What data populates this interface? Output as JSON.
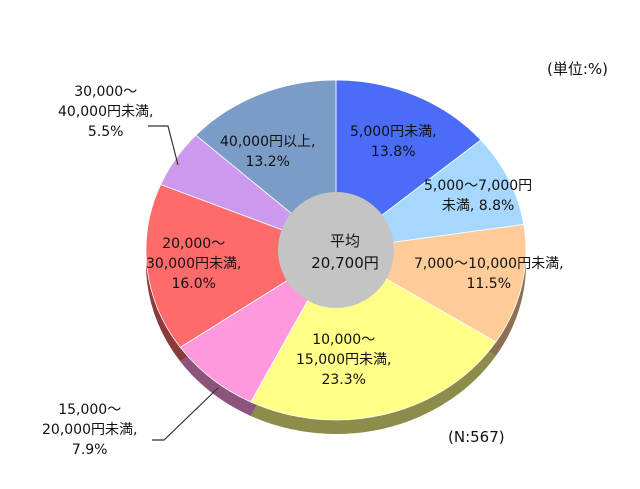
{
  "chart_data": {
    "type": "pie",
    "title": "",
    "unit_note": "(単位:%)",
    "n_note": "(N:567)",
    "center_label": [
      "平均",
      "20,700円"
    ],
    "slices": [
      {
        "label": [
          "5,000円未満,",
          "13.8%"
        ],
        "value": 13.8,
        "color": "#4a6cf7"
      },
      {
        "label": [
          "5,000〜7,000円",
          "未満, 8.8%"
        ],
        "value": 8.8,
        "color": "#a6d8ff"
      },
      {
        "label": [
          "7,000〜10,000円未満,",
          "11.5%"
        ],
        "value": 11.5,
        "color": "#ffcc99"
      },
      {
        "label": [
          "10,000〜",
          "15,000円未満,",
          "23.3%"
        ],
        "value": 23.3,
        "color": "#ffff88"
      },
      {
        "label": [
          "15,000〜",
          "20,000円未満,",
          "7.9%"
        ],
        "value": 7.9,
        "color": "#ff99dd"
      },
      {
        "label": [
          "20,000〜",
          "30,000円未満,",
          "16.0%"
        ],
        "value": 16.0,
        "color": "#ff6b6b"
      },
      {
        "label": [
          "30,000〜",
          "40,000円未満,",
          "5.5%"
        ],
        "value": 5.5,
        "color": "#cc99ee"
      },
      {
        "label": [
          "40,000円以上,",
          "13.2%"
        ],
        "value": 13.2,
        "color": "#7a9cc6"
      }
    ]
  }
}
